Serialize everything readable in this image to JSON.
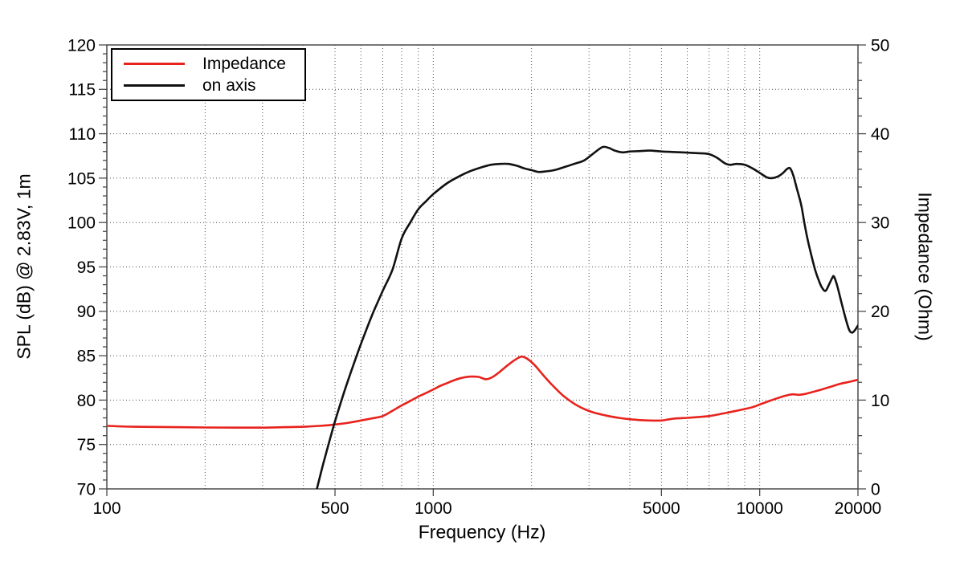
{
  "chart_data": {
    "type": "line",
    "title": "",
    "xlabel": "Frequency (Hz)",
    "ylabel_left": "SPL (dB) @ 2.83V, 1m",
    "ylabel_right": "Impedance (Ohm)",
    "x_scale": "log",
    "x_range": [
      100,
      20000
    ],
    "y_left_range": [
      70,
      120
    ],
    "y_right_range": [
      0,
      50
    ],
    "grid": true,
    "grid_style": "dotted",
    "legend_position": "top-left",
    "x_tick_labels": [
      "100",
      "500",
      "1000",
      "5000",
      "10000",
      "20000"
    ],
    "x_tick_values": [
      100,
      500,
      1000,
      5000,
      10000,
      20000
    ],
    "x_gridlines": [
      200,
      300,
      400,
      500,
      600,
      700,
      800,
      900,
      1000,
      2000,
      3000,
      4000,
      5000,
      6000,
      7000,
      8000,
      9000,
      10000
    ],
    "y_left_ticks": [
      70,
      75,
      80,
      85,
      90,
      95,
      100,
      105,
      110,
      115,
      120
    ],
    "y_left_minor_step": 1,
    "y_right_ticks": [
      0,
      10,
      20,
      30,
      40,
      50
    ],
    "y_right_minor_step": 2,
    "y_gridlines_left": [
      75,
      80,
      85,
      90,
      95,
      100,
      105,
      110,
      115
    ],
    "colors": {
      "impedance": "#e8231d",
      "on_axis": "#111111",
      "frame": "#4a4a4a",
      "gridline": "#3a3a3a",
      "text": "#000000"
    },
    "legend": [
      {
        "label": "Impedance",
        "color": "#e8231d",
        "series": "impedance"
      },
      {
        "label": "on axis",
        "color": "#111111",
        "series": "on_axis"
      }
    ],
    "series": [
      {
        "name": "Impedance",
        "axis": "right",
        "unit": "Ohm",
        "color": "#e8231d",
        "points": [
          [
            100,
            7.1
          ],
          [
            120,
            7.0
          ],
          [
            150,
            6.97
          ],
          [
            200,
            6.92
          ],
          [
            250,
            6.9
          ],
          [
            300,
            6.9
          ],
          [
            350,
            6.95
          ],
          [
            400,
            7.0
          ],
          [
            450,
            7.1
          ],
          [
            500,
            7.25
          ],
          [
            550,
            7.45
          ],
          [
            600,
            7.7
          ],
          [
            650,
            7.95
          ],
          [
            700,
            8.2
          ],
          [
            750,
            8.8
          ],
          [
            800,
            9.4
          ],
          [
            850,
            9.9
          ],
          [
            900,
            10.4
          ],
          [
            950,
            10.8
          ],
          [
            1000,
            11.2
          ],
          [
            1050,
            11.6
          ],
          [
            1100,
            11.9
          ],
          [
            1150,
            12.2
          ],
          [
            1220,
            12.5
          ],
          [
            1300,
            12.65
          ],
          [
            1380,
            12.6
          ],
          [
            1450,
            12.35
          ],
          [
            1520,
            12.6
          ],
          [
            1600,
            13.2
          ],
          [
            1700,
            14.0
          ],
          [
            1800,
            14.65
          ],
          [
            1870,
            14.9
          ],
          [
            1950,
            14.6
          ],
          [
            2050,
            13.9
          ],
          [
            2150,
            13.0
          ],
          [
            2300,
            11.8
          ],
          [
            2500,
            10.5
          ],
          [
            2700,
            9.6
          ],
          [
            2900,
            9.0
          ],
          [
            3100,
            8.6
          ],
          [
            3400,
            8.25
          ],
          [
            3700,
            8.0
          ],
          [
            4000,
            7.85
          ],
          [
            4300,
            7.75
          ],
          [
            4600,
            7.7
          ],
          [
            5000,
            7.7
          ],
          [
            5300,
            7.85
          ],
          [
            5600,
            7.95
          ],
          [
            6000,
            8.0
          ],
          [
            6500,
            8.1
          ],
          [
            7000,
            8.2
          ],
          [
            7500,
            8.4
          ],
          [
            8000,
            8.6
          ],
          [
            8500,
            8.8
          ],
          [
            9000,
            9.0
          ],
          [
            9500,
            9.2
          ],
          [
            10000,
            9.5
          ],
          [
            10700,
            9.9
          ],
          [
            11300,
            10.2
          ],
          [
            12000,
            10.5
          ],
          [
            12600,
            10.65
          ],
          [
            13200,
            10.6
          ],
          [
            13800,
            10.7
          ],
          [
            14500,
            10.9
          ],
          [
            15500,
            11.2
          ],
          [
            16500,
            11.5
          ],
          [
            17500,
            11.8
          ],
          [
            18500,
            12.0
          ],
          [
            19300,
            12.15
          ],
          [
            20000,
            12.3
          ]
        ]
      },
      {
        "name": "on axis",
        "axis": "left",
        "unit": "dB",
        "color": "#111111",
        "points": [
          [
            440,
            70
          ],
          [
            460,
            72.8
          ],
          [
            480,
            75.3
          ],
          [
            500,
            77.6
          ],
          [
            530,
            80.6
          ],
          [
            560,
            83.2
          ],
          [
            600,
            86.3
          ],
          [
            650,
            89.6
          ],
          [
            700,
            92.3
          ],
          [
            750,
            94.7
          ],
          [
            800,
            98.2
          ],
          [
            850,
            100.0
          ],
          [
            900,
            101.5
          ],
          [
            950,
            102.4
          ],
          [
            1000,
            103.2
          ],
          [
            1100,
            104.4
          ],
          [
            1200,
            105.2
          ],
          [
            1300,
            105.8
          ],
          [
            1400,
            106.2
          ],
          [
            1500,
            106.5
          ],
          [
            1600,
            106.6
          ],
          [
            1700,
            106.6
          ],
          [
            1800,
            106.4
          ],
          [
            1900,
            106.1
          ],
          [
            2000,
            105.9
          ],
          [
            2100,
            105.7
          ],
          [
            2200,
            105.75
          ],
          [
            2350,
            105.9
          ],
          [
            2500,
            106.2
          ],
          [
            2700,
            106.6
          ],
          [
            2900,
            107.0
          ],
          [
            3100,
            107.8
          ],
          [
            3300,
            108.5
          ],
          [
            3450,
            108.4
          ],
          [
            3600,
            108.1
          ],
          [
            3800,
            107.9
          ],
          [
            4000,
            108.0
          ],
          [
            4300,
            108.05
          ],
          [
            4600,
            108.1
          ],
          [
            5000,
            108.0
          ],
          [
            5400,
            107.95
          ],
          [
            5800,
            107.9
          ],
          [
            6200,
            107.85
          ],
          [
            6600,
            107.8
          ],
          [
            7000,
            107.7
          ],
          [
            7400,
            107.3
          ],
          [
            7800,
            106.7
          ],
          [
            8100,
            106.5
          ],
          [
            8500,
            106.6
          ],
          [
            9000,
            106.5
          ],
          [
            9500,
            106.1
          ],
          [
            10000,
            105.6
          ],
          [
            10500,
            105.1
          ],
          [
            10900,
            105.0
          ],
          [
            11400,
            105.2
          ],
          [
            11800,
            105.6
          ],
          [
            12100,
            106.0
          ],
          [
            12400,
            106.1
          ],
          [
            12700,
            105.2
          ],
          [
            13000,
            103.8
          ],
          [
            13400,
            102.0
          ],
          [
            13700,
            100.0
          ],
          [
            14000,
            98.2
          ],
          [
            14400,
            96.3
          ],
          [
            14800,
            94.6
          ],
          [
            15200,
            93.4
          ],
          [
            15500,
            92.7
          ],
          [
            15900,
            92.3
          ],
          [
            16300,
            93.0
          ],
          [
            16700,
            93.8
          ],
          [
            16900,
            93.9
          ],
          [
            17300,
            92.8
          ],
          [
            17800,
            91.0
          ],
          [
            18300,
            89.3
          ],
          [
            18800,
            87.9
          ],
          [
            19200,
            87.6
          ],
          [
            19600,
            87.9
          ],
          [
            20000,
            88.4
          ]
        ]
      }
    ]
  }
}
